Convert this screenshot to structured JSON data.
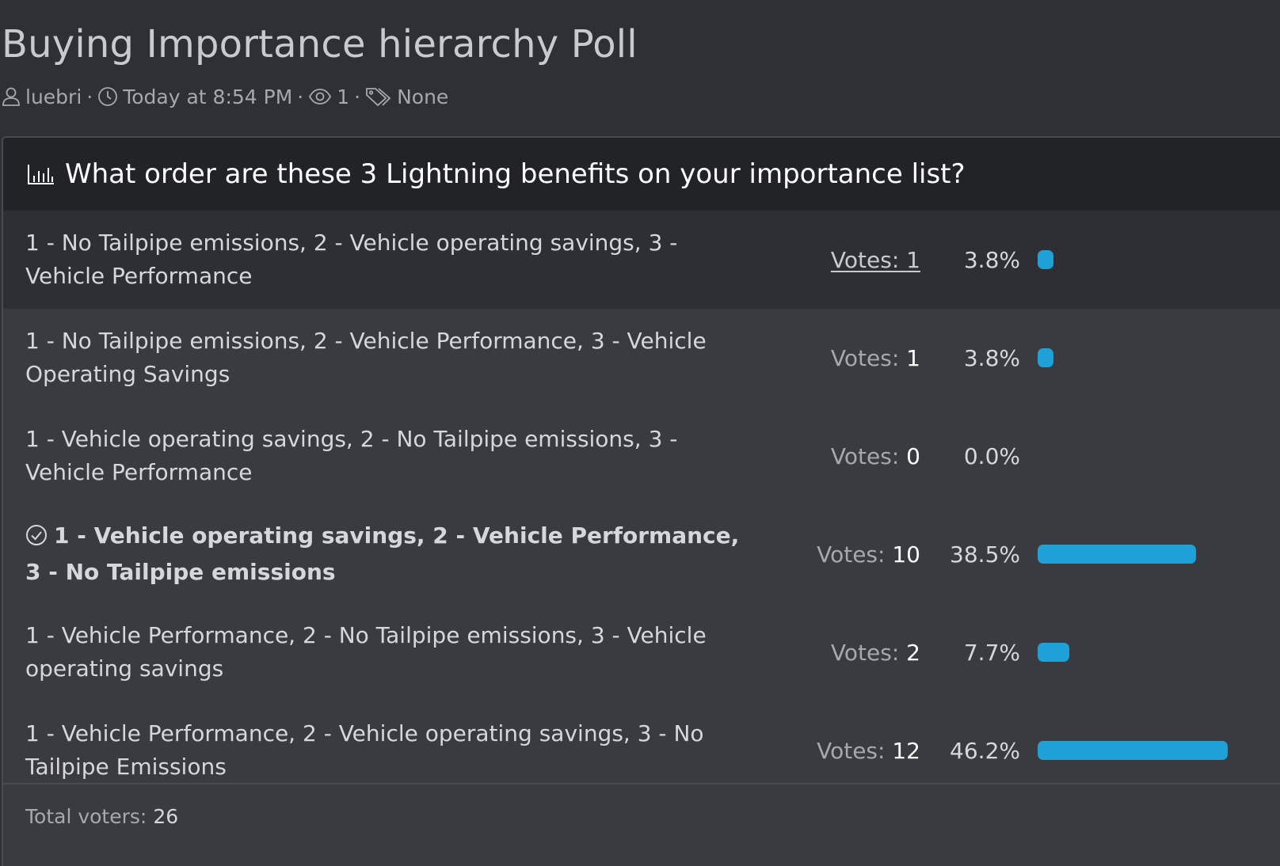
{
  "thread": {
    "title": "Buying Importance hierarchy Poll",
    "meta": {
      "author": "luebri",
      "author_icon": "user-icon",
      "date": "Today at 8:54 PM",
      "date_icon": "clock-icon",
      "views": "1",
      "views_icon": "eye-icon",
      "tags": "None",
      "tags_icon": "tags-icon",
      "separator": "·"
    }
  },
  "poll": {
    "question": "What order are these 3 Lightning benefits on your importance list?",
    "question_icon": "bar-chart-icon",
    "votes_label": "Votes: ",
    "accent_color": "#1fa0d6",
    "results": [
      {
        "response": "1 - No Tailpipe emissions, 2 - Vehicle operating savings, 3 - Vehicle Performance",
        "votes": "1",
        "percent": "3.8%",
        "share": 0.038,
        "voted_by_user": false,
        "votes_link": true
      },
      {
        "response": "1 - No Tailpipe emissions, 2 - Vehicle Performance, 3 - Vehicle Operating Savings",
        "votes": "1",
        "percent": "3.8%",
        "share": 0.038,
        "voted_by_user": false,
        "votes_link": false
      },
      {
        "response": "1 - Vehicle operating savings, 2 - No Tailpipe emissions, 3 - Vehicle Performance",
        "votes": "0",
        "percent": "0.0%",
        "share": 0.0,
        "voted_by_user": false,
        "votes_link": false
      },
      {
        "response": "1 - Vehicle operating savings, 2 - Vehicle Performance, 3 - No Tailpipe emissions",
        "votes": "10",
        "percent": "38.5%",
        "share": 0.385,
        "voted_by_user": true,
        "votes_link": false
      },
      {
        "response": "1 - Vehicle Performance, 2 - No Tailpipe emissions, 3 - Vehicle operating savings",
        "votes": "2",
        "percent": "7.7%",
        "share": 0.077,
        "voted_by_user": false,
        "votes_link": false
      },
      {
        "response": "1 - Vehicle Performance, 2 - Vehicle operating savings, 3 - No Tailpipe Emissions",
        "votes": "12",
        "percent": "46.2%",
        "share": 0.462,
        "voted_by_user": false,
        "votes_link": false
      }
    ],
    "footer": {
      "total_label": "Total voters:",
      "total_value": "26"
    }
  }
}
